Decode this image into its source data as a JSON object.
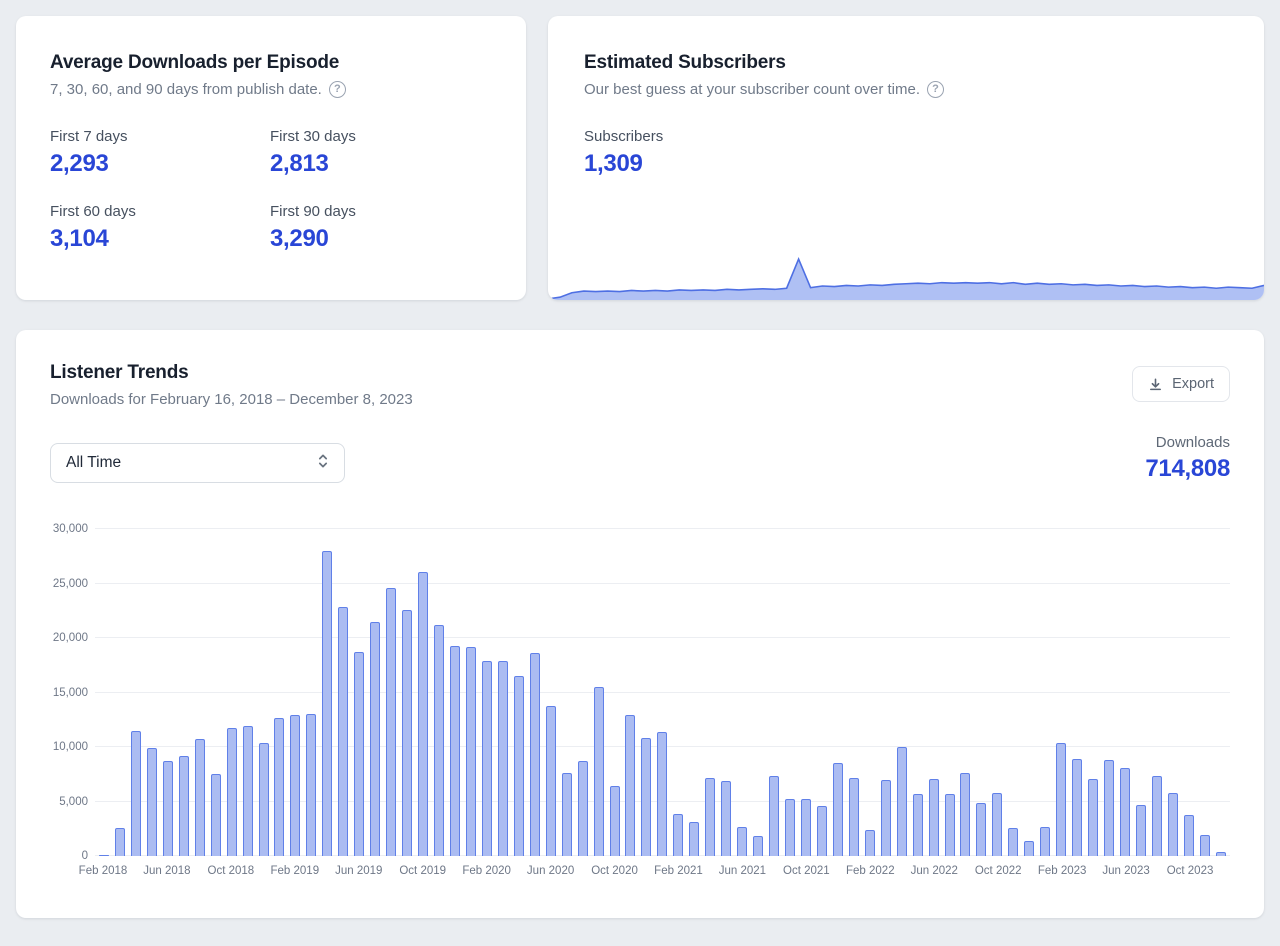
{
  "avg_card": {
    "title": "Average Downloads per Episode",
    "subtitle": "7, 30, 60, and 90 days from publish date.",
    "stats": [
      {
        "label": "First 7 days",
        "value": "2,293"
      },
      {
        "label": "First 30 days",
        "value": "2,813"
      },
      {
        "label": "First 60 days",
        "value": "3,104"
      },
      {
        "label": "First 90 days",
        "value": "3,290"
      }
    ]
  },
  "subs_card": {
    "title": "Estimated Subscribers",
    "subtitle": "Our best guess at your subscriber count over time.",
    "stat_label": "Subscribers",
    "stat_value": "1,309"
  },
  "trends_card": {
    "title": "Listener Trends",
    "subtitle": "Downloads for February 16, 2018 – December 8, 2023",
    "export_label": "Export",
    "filter_value": "All Time",
    "downloads_label": "Downloads",
    "downloads_value": "714,808"
  },
  "icons": {
    "help_glyph": "?"
  },
  "colors": {
    "accent_blue": "#2946D6",
    "bar_fill": "#ABBCF2",
    "bar_border": "#6080E8",
    "area_fill": "#AFC0F4",
    "area_line": "#4E6FE3"
  },
  "chart_data": [
    {
      "type": "bar",
      "title": "Listener Trends",
      "ylabel": "Downloads",
      "ylim": [
        0,
        30000
      ],
      "ytick_labels": [
        "0",
        "5,000",
        "10,000",
        "15,000",
        "20,000",
        "25,000",
        "30,000"
      ],
      "xtick_every": 4,
      "grid": true,
      "categories": [
        "Feb 2018",
        "Mar 2018",
        "Apr 2018",
        "May 2018",
        "Jun 2018",
        "Jul 2018",
        "Aug 2018",
        "Sep 2018",
        "Oct 2018",
        "Nov 2018",
        "Dec 2018",
        "Jan 2019",
        "Feb 2019",
        "Mar 2019",
        "Apr 2019",
        "May 2019",
        "Jun 2019",
        "Jul 2019",
        "Aug 2019",
        "Sep 2019",
        "Oct 2019",
        "Nov 2019",
        "Dec 2019",
        "Jan 2020",
        "Feb 2020",
        "Mar 2020",
        "Apr 2020",
        "May 2020",
        "Jun 2020",
        "Jul 2020",
        "Aug 2020",
        "Sep 2020",
        "Oct 2020",
        "Nov 2020",
        "Dec 2020",
        "Jan 2021",
        "Feb 2021",
        "Mar 2021",
        "Apr 2021",
        "May 2021",
        "Jun 2021",
        "Jul 2021",
        "Aug 2021",
        "Sep 2021",
        "Oct 2021",
        "Nov 2021",
        "Dec 2021",
        "Jan 2022",
        "Feb 2022",
        "Mar 2022",
        "Apr 2022",
        "May 2022",
        "Jun 2022",
        "Jul 2022",
        "Aug 2022",
        "Sep 2022",
        "Oct 2022",
        "Nov 2022",
        "Dec 2022",
        "Jan 2023",
        "Feb 2023",
        "Mar 2023",
        "Apr 2023",
        "May 2023",
        "Jun 2023",
        "Jul 2023",
        "Aug 2023",
        "Sep 2023",
        "Oct 2023",
        "Nov 2023",
        "Dec 2023"
      ],
      "values": [
        100,
        2600,
        11500,
        9900,
        8700,
        9200,
        10700,
        7500,
        11700,
        11900,
        10400,
        12700,
        12900,
        13000,
        28000,
        22800,
        18700,
        21500,
        24600,
        22600,
        26100,
        21200,
        19300,
        19200,
        17900,
        17900,
        16500,
        18600,
        13800,
        7600,
        8700,
        15500,
        6400,
        12900,
        10800,
        11400,
        3900,
        3100,
        7200,
        6900,
        2650,
        1800,
        7300,
        5200,
        5200,
        4600,
        8500,
        7200,
        2400,
        7000,
        10000,
        5700,
        7100,
        5700,
        7600,
        4900,
        5800,
        2600,
        1400,
        2700,
        10400,
        8900,
        7100,
        8800,
        8100,
        4700,
        7300,
        5800,
        3800,
        1900,
        400
      ]
    },
    {
      "type": "area",
      "title": "Estimated Subscribers",
      "ylim": [
        0,
        100
      ],
      "y_percent": [
        2,
        5,
        13,
        16,
        15,
        16,
        15,
        17,
        16,
        17,
        16,
        18,
        17,
        18,
        17,
        19,
        18,
        19,
        20,
        19,
        21,
        73,
        22,
        25,
        24,
        26,
        25,
        27,
        26,
        28,
        29,
        30,
        29,
        31,
        30,
        31,
        30,
        31,
        29,
        31,
        28,
        30,
        28,
        29,
        27,
        28,
        26,
        27,
        25,
        26,
        24,
        25,
        23,
        24,
        22,
        23,
        21,
        23,
        22,
        21,
        26
      ]
    }
  ]
}
